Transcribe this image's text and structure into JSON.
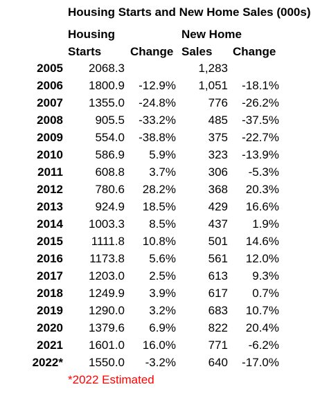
{
  "title": "Housing Starts and New Home Sales (000s)",
  "headers": {
    "starts_line1": "Housing",
    "starts_line2": "Starts",
    "starts_change": "Change",
    "sales_line1": "New Home",
    "sales_line2": "Sales",
    "sales_change": "Change"
  },
  "rows": [
    {
      "year": "2005",
      "starts": "2068.3",
      "starts_change": "",
      "sales": "1,283",
      "sales_change": ""
    },
    {
      "year": "2006",
      "starts": "1800.9",
      "starts_change": "-12.9%",
      "sales": "1,051",
      "sales_change": "-18.1%"
    },
    {
      "year": "2007",
      "starts": "1355.0",
      "starts_change": "-24.8%",
      "sales": "776",
      "sales_change": "-26.2%"
    },
    {
      "year": "2008",
      "starts": "905.5",
      "starts_change": "-33.2%",
      "sales": "485",
      "sales_change": "-37.5%"
    },
    {
      "year": "2009",
      "starts": "554.0",
      "starts_change": "-38.8%",
      "sales": "375",
      "sales_change": "-22.7%"
    },
    {
      "year": "2010",
      "starts": "586.9",
      "starts_change": "5.9%",
      "sales": "323",
      "sales_change": "-13.9%"
    },
    {
      "year": "2011",
      "starts": "608.8",
      "starts_change": "3.7%",
      "sales": "306",
      "sales_change": "-5.3%"
    },
    {
      "year": "2012",
      "starts": "780.6",
      "starts_change": "28.2%",
      "sales": "368",
      "sales_change": "20.3%"
    },
    {
      "year": "2013",
      "starts": "924.9",
      "starts_change": "18.5%",
      "sales": "429",
      "sales_change": "16.6%"
    },
    {
      "year": "2014",
      "starts": "1003.3",
      "starts_change": "8.5%",
      "sales": "437",
      "sales_change": "1.9%"
    },
    {
      "year": "2015",
      "starts": "1111.8",
      "starts_change": "10.8%",
      "sales": "501",
      "sales_change": "14.6%"
    },
    {
      "year": "2016",
      "starts": "1173.8",
      "starts_change": "5.6%",
      "sales": "561",
      "sales_change": "12.0%"
    },
    {
      "year": "2017",
      "starts": "1203.0",
      "starts_change": "2.5%",
      "sales": "613",
      "sales_change": "9.3%"
    },
    {
      "year": "2018",
      "starts": "1249.9",
      "starts_change": "3.9%",
      "sales": "617",
      "sales_change": "0.7%"
    },
    {
      "year": "2019",
      "starts": "1290.0",
      "starts_change": "3.2%",
      "sales": "683",
      "sales_change": "10.7%"
    },
    {
      "year": "2020",
      "starts": "1379.6",
      "starts_change": "6.9%",
      "sales": "822",
      "sales_change": "20.4%"
    },
    {
      "year": "2021",
      "starts": "1601.0",
      "starts_change": "16.0%",
      "sales": "771",
      "sales_change": "-6.2%"
    },
    {
      "year": "2022*",
      "starts": "1550.0",
      "starts_change": "-3.2%",
      "sales": "640",
      "sales_change": "-17.0%"
    }
  ],
  "footnote": "*2022 Estimated",
  "colors": {
    "text": "#000000",
    "footnote": "#ff0000",
    "background": "#ffffff"
  }
}
